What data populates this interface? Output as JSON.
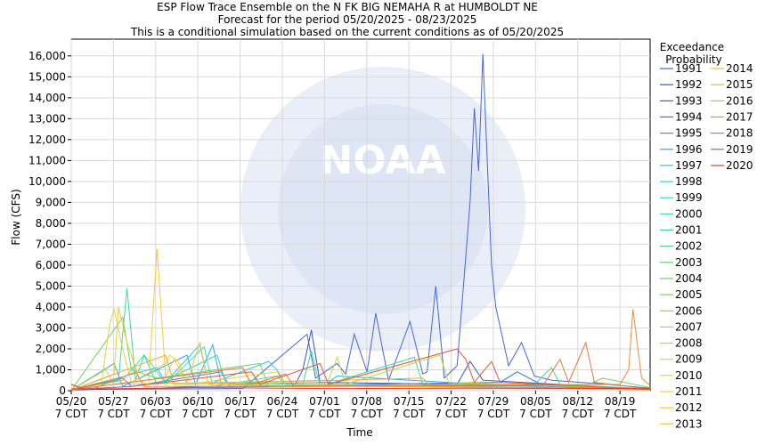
{
  "chart_data": {
    "type": "line",
    "title": [
      "ESP Flow Trace Ensemble on the N FK BIG NEMAHA R at HUMBOLDT NE",
      "Forecast for the period 05/20/2025 - 08/23/2025",
      "This is a conditional simulation based on the current conditions as of 05/20/2025"
    ],
    "xlabel": "Time",
    "ylabel": "Flow (CFS)",
    "ylim": [
      0,
      16800
    ],
    "yticks": [
      0,
      1000,
      2000,
      3000,
      4000,
      5000,
      6000,
      7000,
      8000,
      9000,
      10000,
      11000,
      12000,
      13000,
      14000,
      15000,
      16000
    ],
    "ytick_labels": [
      "0",
      "1,000",
      "2,000",
      "3,000",
      "4,000",
      "5,000",
      "6,000",
      "7,000",
      "8,000",
      "9,000",
      "10,000",
      "11,000",
      "12,000",
      "13,000",
      "14,000",
      "15,000",
      "16,000"
    ],
    "xlim": [
      "05/20",
      "08/24"
    ],
    "xticks": [
      "05/20",
      "05/27",
      "06/03",
      "06/10",
      "06/17",
      "06/24",
      "07/01",
      "07/08",
      "07/15",
      "07/22",
      "07/29",
      "08/05",
      "08/12",
      "08/19"
    ],
    "xtick_sublabel": "7 CDT",
    "grid": true,
    "watermark": "NOAA",
    "legend": {
      "title": [
        "Exceedance",
        "Probability"
      ],
      "placement": "right",
      "entries": [
        {
          "name": "1991",
          "color": "#4466dd"
        },
        {
          "name": "1992",
          "color": "#3355cc"
        },
        {
          "name": "1993",
          "color": "#2f5fd6"
        },
        {
          "name": "1994",
          "color": "#3a73d9"
        },
        {
          "name": "1995",
          "color": "#3f8fe0"
        },
        {
          "name": "1996",
          "color": "#35a6e6"
        },
        {
          "name": "1997",
          "color": "#33c1e8"
        },
        {
          "name": "1998",
          "color": "#2fd6de"
        },
        {
          "name": "1999",
          "color": "#3adcc8"
        },
        {
          "name": "2000",
          "color": "#39dcb0"
        },
        {
          "name": "2001",
          "color": "#3ed996"
        },
        {
          "name": "2002",
          "color": "#4fd67f"
        },
        {
          "name": "2003",
          "color": "#5ed46c"
        },
        {
          "name": "2004",
          "color": "#6fd25c"
        },
        {
          "name": "2005",
          "color": "#82d24e"
        },
        {
          "name": "2006",
          "color": "#98d445"
        },
        {
          "name": "2007",
          "color": "#aed63f"
        },
        {
          "name": "2008",
          "color": "#c3d83b"
        },
        {
          "name": "2009",
          "color": "#d6d83a"
        },
        {
          "name": "2010",
          "color": "#e3d43a"
        },
        {
          "name": "2011",
          "color": "#ecd03c"
        },
        {
          "name": "2012",
          "color": "#f0c93e"
        },
        {
          "name": "2013",
          "color": "#f2c23f"
        },
        {
          "name": "2014",
          "color": "#f3bb40"
        },
        {
          "name": "2015",
          "color": "#f2b13f"
        },
        {
          "name": "2016",
          "color": "#efa63e"
        },
        {
          "name": "2017",
          "color": "#ea8c3c"
        },
        {
          "name": "2018",
          "color": "#e6733b"
        },
        {
          "name": "2019",
          "color": "#e15a39"
        },
        {
          "name": "2020",
          "color": "#dc4235"
        }
      ]
    },
    "series": [
      {
        "name": "1991",
        "color": "#4466dd",
        "points": [
          [
            0,
            60
          ],
          [
            40,
            100
          ],
          [
            55,
            2700
          ],
          [
            57,
            600
          ],
          [
            62,
            1300
          ],
          [
            64,
            800
          ],
          [
            66,
            2700
          ],
          [
            69,
            900
          ],
          [
            71,
            3700
          ],
          [
            74,
            500
          ],
          [
            79,
            3300
          ],
          [
            82,
            800
          ],
          [
            83,
            900
          ],
          [
            85,
            5000
          ],
          [
            87,
            600
          ],
          [
            90,
            1200
          ],
          [
            93,
            9000
          ],
          [
            94,
            13500
          ],
          [
            95,
            10500
          ],
          [
            96,
            16100
          ],
          [
            98,
            6000
          ],
          [
            99,
            4000
          ],
          [
            102,
            1200
          ],
          [
            105,
            2300
          ],
          [
            108,
            700
          ],
          [
            112,
            500
          ],
          [
            125,
            300
          ],
          [
            135,
            120
          ]
        ]
      },
      {
        "name": "1992",
        "color": "#3355cc",
        "points": [
          [
            0,
            40
          ],
          [
            20,
            120
          ],
          [
            30,
            200
          ],
          [
            52,
            200
          ],
          [
            54,
            1000
          ],
          [
            56,
            2900
          ],
          [
            58,
            400
          ],
          [
            90,
            300
          ],
          [
            93,
            1400
          ],
          [
            96,
            500
          ],
          [
            135,
            60
          ]
        ]
      },
      {
        "name": "1993",
        "color": "#3a73d9",
        "points": [
          [
            0,
            50
          ],
          [
            14,
            200
          ],
          [
            35,
            900
          ],
          [
            37,
            200
          ],
          [
            100,
            400
          ],
          [
            104,
            900
          ],
          [
            110,
            250
          ],
          [
            135,
            100
          ]
        ]
      },
      {
        "name": "1995",
        "color": "#35a6e6",
        "points": [
          [
            0,
            30
          ],
          [
            10,
            1300
          ],
          [
            12,
            200
          ],
          [
            27,
            1700
          ],
          [
            29,
            300
          ],
          [
            33,
            2200
          ],
          [
            35,
            300
          ],
          [
            60,
            400
          ],
          [
            62,
            700
          ],
          [
            100,
            250
          ],
          [
            135,
            80
          ]
        ]
      },
      {
        "name": "1997",
        "color": "#33c1e8",
        "points": [
          [
            0,
            30
          ],
          [
            20,
            1100
          ],
          [
            22,
            400
          ],
          [
            30,
            2200
          ],
          [
            32,
            300
          ],
          [
            46,
            1400
          ],
          [
            48,
            1000
          ],
          [
            50,
            300
          ],
          [
            62,
            300
          ],
          [
            135,
            70
          ]
        ]
      },
      {
        "name": "1999",
        "color": "#3adcc8",
        "points": [
          [
            0,
            30
          ],
          [
            12,
            500
          ],
          [
            17,
            1700
          ],
          [
            19,
            1200
          ],
          [
            22,
            300
          ],
          [
            31,
            2100
          ],
          [
            33,
            200
          ],
          [
            48,
            700
          ],
          [
            50,
            300
          ],
          [
            135,
            60
          ]
        ]
      },
      {
        "name": "2001",
        "color": "#3ed996",
        "points": [
          [
            0,
            30
          ],
          [
            11,
            500
          ],
          [
            13,
            4900
          ],
          [
            15,
            500
          ],
          [
            17,
            1700
          ],
          [
            20,
            300
          ],
          [
            34,
            1700
          ],
          [
            36,
            400
          ],
          [
            54,
            300
          ],
          [
            56,
            1900
          ],
          [
            58,
            200
          ],
          [
            80,
            1600
          ],
          [
            82,
            300
          ],
          [
            108,
            300
          ],
          [
            112,
            1100
          ],
          [
            114,
            300
          ],
          [
            135,
            90
          ]
        ]
      },
      {
        "name": "2004",
        "color": "#6fd25c",
        "points": [
          [
            0,
            20
          ],
          [
            12,
            3500
          ],
          [
            14,
            1000
          ],
          [
            20,
            600
          ],
          [
            44,
            1300
          ],
          [
            46,
            200
          ],
          [
            120,
            250
          ],
          [
            124,
            600
          ],
          [
            135,
            150
          ]
        ]
      },
      {
        "name": "2008",
        "color": "#c3d83b",
        "points": [
          [
            0,
            25
          ],
          [
            8,
            1000
          ],
          [
            10,
            300
          ],
          [
            60,
            500
          ],
          [
            62,
            1600
          ],
          [
            64,
            300
          ],
          [
            86,
            1700
          ],
          [
            88,
            400
          ],
          [
            135,
            80
          ]
        ]
      },
      {
        "name": "2011",
        "color": "#ecd03c",
        "points": [
          [
            0,
            20
          ],
          [
            7,
            300
          ],
          [
            9,
            3200
          ],
          [
            10,
            3900
          ],
          [
            12,
            2000
          ],
          [
            14,
            400
          ],
          [
            22,
            1300
          ],
          [
            23,
            1700
          ],
          [
            25,
            1400
          ],
          [
            27,
            300
          ],
          [
            48,
            900
          ],
          [
            50,
            300
          ],
          [
            135,
            50
          ]
        ]
      },
      {
        "name": "2012",
        "color": "#f0c93e",
        "points": [
          [
            0,
            20
          ],
          [
            10,
            800
          ],
          [
            11,
            4000
          ],
          [
            13,
            2300
          ],
          [
            16,
            500
          ],
          [
            18,
            300
          ],
          [
            20,
            6800
          ],
          [
            22,
            700
          ],
          [
            24,
            1500
          ],
          [
            27,
            400
          ],
          [
            30,
            2300
          ],
          [
            32,
            300
          ],
          [
            135,
            40
          ]
        ]
      },
      {
        "name": "2015",
        "color": "#efa63e",
        "points": [
          [
            0,
            15
          ],
          [
            22,
            1700
          ],
          [
            24,
            300
          ],
          [
            82,
            600
          ],
          [
            84,
            200
          ],
          [
            135,
            40
          ]
        ]
      },
      {
        "name": "2017",
        "color": "#ea8c3c",
        "points": [
          [
            0,
            100
          ],
          [
            5,
            80
          ],
          [
            15,
            900
          ],
          [
            17,
            200
          ],
          [
            128,
            300
          ],
          [
            130,
            1000
          ],
          [
            131,
            3900
          ],
          [
            133,
            600
          ],
          [
            135,
            250
          ]
        ]
      },
      {
        "name": "2018",
        "color": "#e6733b",
        "points": [
          [
            0,
            40
          ],
          [
            40,
            1100
          ],
          [
            42,
            300
          ],
          [
            50,
            800
          ],
          [
            52,
            200
          ],
          [
            110,
            250
          ],
          [
            114,
            1500
          ],
          [
            116,
            400
          ],
          [
            120,
            2300
          ],
          [
            122,
            400
          ],
          [
            135,
            80
          ]
        ]
      },
      {
        "name": "2019",
        "color": "#e15a39",
        "points": [
          [
            0,
            40
          ],
          [
            12,
            600
          ],
          [
            14,
            200
          ],
          [
            42,
            900
          ],
          [
            44,
            300
          ],
          [
            58,
            1300
          ],
          [
            60,
            300
          ],
          [
            90,
            2000
          ],
          [
            92,
            1500
          ],
          [
            94,
            400
          ],
          [
            98,
            1400
          ],
          [
            100,
            400
          ],
          [
            135,
            60
          ]
        ]
      },
      {
        "name": "2020",
        "color": "#dc4235",
        "points": [
          [
            0,
            300
          ],
          [
            3,
            80
          ],
          [
            30,
            150
          ],
          [
            60,
            100
          ],
          [
            90,
            120
          ],
          [
            135,
            100
          ]
        ]
      }
    ]
  }
}
